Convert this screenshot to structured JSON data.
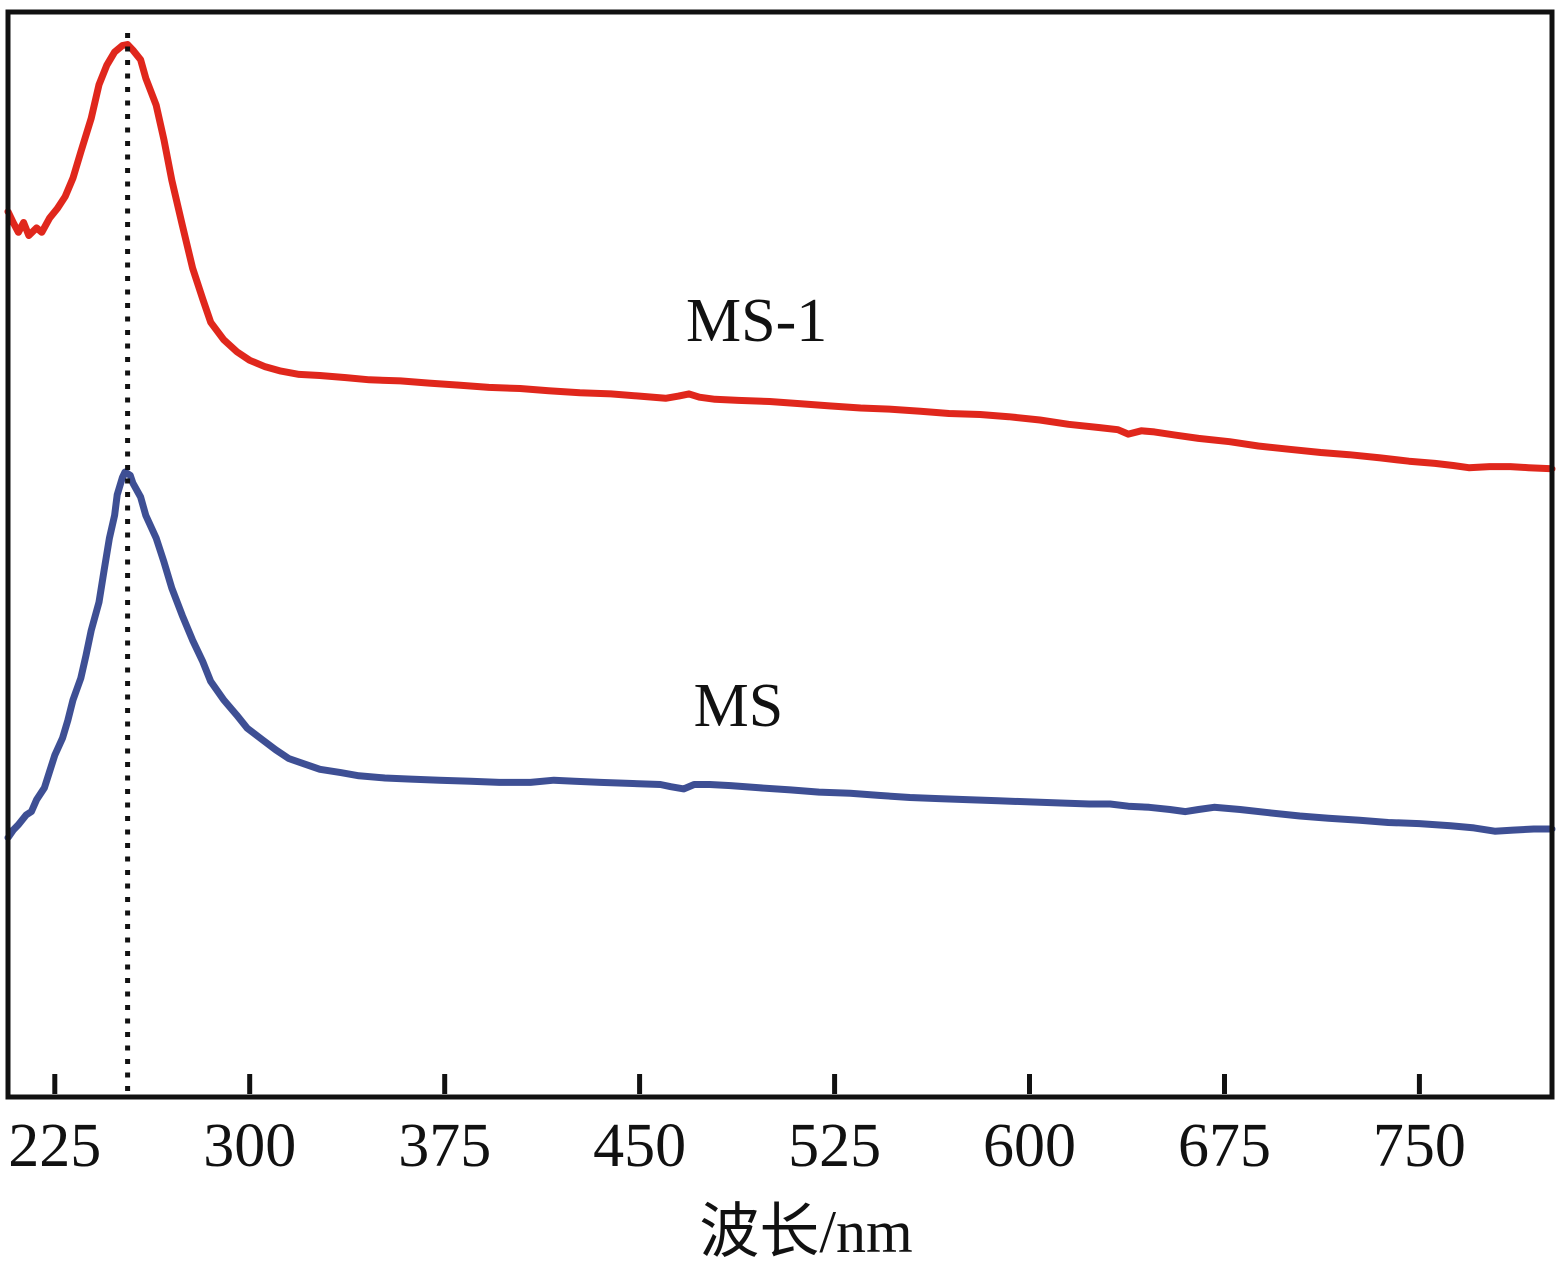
{
  "figure": {
    "background": "#ffffff",
    "frame_color": "#111111"
  },
  "chart_data": {
    "type": "line",
    "title": "",
    "xlabel": "波长/nm",
    "ylabel": "",
    "x_ticks": [
      225,
      300,
      375,
      450,
      525,
      600,
      675,
      750
    ],
    "xlim": [
      207,
      801
    ],
    "ylim": [
      0,
      1
    ],
    "grid": false,
    "legend_position": "inline-labels",
    "peak_marker_nm": 253,
    "peak_marker_style": "vertical-dotted",
    "series": [
      {
        "name": "MS-1",
        "color": "#e0271c",
        "label_anchor": {
          "x_nm": 495,
          "y": 0.71
        },
        "points": [
          [
            207,
            0.816
          ],
          [
            209,
            0.806
          ],
          [
            211,
            0.797
          ],
          [
            213,
            0.806
          ],
          [
            215,
            0.794
          ],
          [
            218,
            0.801
          ],
          [
            220,
            0.797
          ],
          [
            223,
            0.81
          ],
          [
            226,
            0.819
          ],
          [
            229,
            0.83
          ],
          [
            232,
            0.847
          ],
          [
            235,
            0.871
          ],
          [
            239,
            0.902
          ],
          [
            242,
            0.933
          ],
          [
            245,
            0.951
          ],
          [
            248,
            0.963
          ],
          [
            251,
            0.969
          ],
          [
            253,
            0.97
          ],
          [
            255,
            0.965
          ],
          [
            258,
            0.956
          ],
          [
            260,
            0.939
          ],
          [
            264,
            0.914
          ],
          [
            267,
            0.882
          ],
          [
            270,
            0.845
          ],
          [
            274,
            0.804
          ],
          [
            278,
            0.764
          ],
          [
            282,
            0.735
          ],
          [
            285,
            0.714
          ],
          [
            290,
            0.698
          ],
          [
            295,
            0.687
          ],
          [
            300,
            0.679
          ],
          [
            306,
            0.673
          ],
          [
            312,
            0.669
          ],
          [
            319,
            0.666
          ],
          [
            327,
            0.665
          ],
          [
            337,
            0.663
          ],
          [
            346,
            0.661
          ],
          [
            358,
            0.66
          ],
          [
            369,
            0.658
          ],
          [
            381,
            0.656
          ],
          [
            392,
            0.654
          ],
          [
            404,
            0.653
          ],
          [
            415,
            0.651
          ],
          [
            427,
            0.649
          ],
          [
            439,
            0.648
          ],
          [
            450,
            0.646
          ],
          [
            460,
            0.644
          ],
          [
            465,
            0.646
          ],
          [
            469,
            0.648
          ],
          [
            473,
            0.645
          ],
          [
            479,
            0.643
          ],
          [
            488,
            0.642
          ],
          [
            500,
            0.641
          ],
          [
            512,
            0.639
          ],
          [
            523,
            0.637
          ],
          [
            535,
            0.635
          ],
          [
            546,
            0.634
          ],
          [
            558,
            0.632
          ],
          [
            569,
            0.63
          ],
          [
            581,
            0.629
          ],
          [
            592,
            0.627
          ],
          [
            604,
            0.624
          ],
          [
            615,
            0.62
          ],
          [
            627,
            0.617
          ],
          [
            634,
            0.615
          ],
          [
            638,
            0.611
          ],
          [
            643,
            0.614
          ],
          [
            648,
            0.613
          ],
          [
            656,
            0.61
          ],
          [
            665,
            0.607
          ],
          [
            677,
            0.604
          ],
          [
            688,
            0.6
          ],
          [
            700,
            0.597
          ],
          [
            712,
            0.594
          ],
          [
            723,
            0.592
          ],
          [
            735,
            0.589
          ],
          [
            746,
            0.586
          ],
          [
            756,
            0.584
          ],
          [
            763,
            0.582
          ],
          [
            769,
            0.58
          ],
          [
            777,
            0.581
          ],
          [
            785,
            0.581
          ],
          [
            792,
            0.58
          ],
          [
            801,
            0.579
          ]
        ]
      },
      {
        "name": "MS",
        "color": "#3e4f94",
        "label_anchor": {
          "x_nm": 488,
          "y": 0.355
        },
        "points": [
          [
            207,
            0.239
          ],
          [
            209,
            0.246
          ],
          [
            211,
            0.251
          ],
          [
            214,
            0.26
          ],
          [
            216,
            0.263
          ],
          [
            218,
            0.274
          ],
          [
            221,
            0.285
          ],
          [
            223,
            0.3
          ],
          [
            225,
            0.315
          ],
          [
            228,
            0.331
          ],
          [
            230,
            0.347
          ],
          [
            232,
            0.366
          ],
          [
            235,
            0.386
          ],
          [
            237,
            0.407
          ],
          [
            239,
            0.43
          ],
          [
            242,
            0.456
          ],
          [
            244,
            0.486
          ],
          [
            246,
            0.515
          ],
          [
            248,
            0.536
          ],
          [
            249,
            0.555
          ],
          [
            251,
            0.571
          ],
          [
            252,
            0.576
          ],
          [
            254,
            0.573
          ],
          [
            255,
            0.566
          ],
          [
            258,
            0.553
          ],
          [
            260,
            0.536
          ],
          [
            264,
            0.515
          ],
          [
            267,
            0.493
          ],
          [
            270,
            0.469
          ],
          [
            274,
            0.444
          ],
          [
            278,
            0.421
          ],
          [
            282,
            0.401
          ],
          [
            285,
            0.383
          ],
          [
            290,
            0.366
          ],
          [
            295,
            0.352
          ],
          [
            299,
            0.34
          ],
          [
            305,
            0.329
          ],
          [
            310,
            0.32
          ],
          [
            315,
            0.312
          ],
          [
            321,
            0.307
          ],
          [
            327,
            0.302
          ],
          [
            335,
            0.299
          ],
          [
            342,
            0.296
          ],
          [
            352,
            0.294
          ],
          [
            362,
            0.293
          ],
          [
            373,
            0.292
          ],
          [
            385,
            0.291
          ],
          [
            396,
            0.29
          ],
          [
            408,
            0.29
          ],
          [
            417,
            0.292
          ],
          [
            425,
            0.291
          ],
          [
            435,
            0.29
          ],
          [
            446,
            0.289
          ],
          [
            458,
            0.288
          ],
          [
            462,
            0.286
          ],
          [
            467,
            0.284
          ],
          [
            471,
            0.288
          ],
          [
            477,
            0.288
          ],
          [
            485,
            0.287
          ],
          [
            496,
            0.285
          ],
          [
            508,
            0.283
          ],
          [
            519,
            0.281
          ],
          [
            531,
            0.28
          ],
          [
            542,
            0.278
          ],
          [
            554,
            0.276
          ],
          [
            565,
            0.275
          ],
          [
            577,
            0.274
          ],
          [
            588,
            0.273
          ],
          [
            600,
            0.272
          ],
          [
            612,
            0.271
          ],
          [
            623,
            0.27
          ],
          [
            631,
            0.27
          ],
          [
            638,
            0.268
          ],
          [
            646,
            0.267
          ],
          [
            654,
            0.265
          ],
          [
            660,
            0.263
          ],
          [
            665,
            0.265
          ],
          [
            671,
            0.267
          ],
          [
            681,
            0.265
          ],
          [
            692,
            0.262
          ],
          [
            704,
            0.259
          ],
          [
            715,
            0.257
          ],
          [
            727,
            0.255
          ],
          [
            738,
            0.253
          ],
          [
            750,
            0.252
          ],
          [
            762,
            0.25
          ],
          [
            771,
            0.248
          ],
          [
            779,
            0.245
          ],
          [
            786,
            0.246
          ],
          [
            794,
            0.247
          ],
          [
            801,
            0.247
          ]
        ]
      }
    ]
  }
}
